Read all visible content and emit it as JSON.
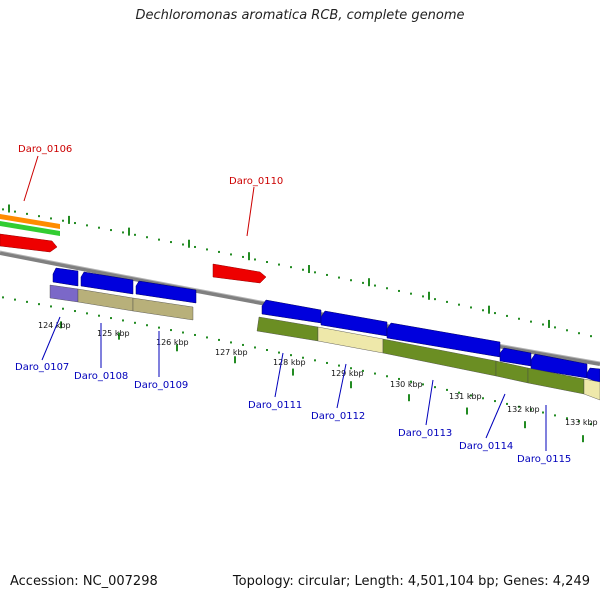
{
  "title": "Dechloromonas aromatica RCB, complete genome",
  "footer": {
    "accession": "Accession: NC_007298",
    "summary": "Topology: circular; Length: 4,501,104 bp; Genes: 4,249"
  },
  "colors": {
    "forward_cds": "#0000dd",
    "reverse_cds": "#ee0000",
    "gene_label_forward": "#0000bb",
    "gene_label_reverse": "#cc0000",
    "backbone": "#808080",
    "tick_marks": "#228b22",
    "cog_purple": "#7b68c8",
    "cog_khaki": "#b8b07a",
    "cog_olive": "#6b8e23",
    "cog_cream": "#eee8aa",
    "orange_track": "#ff8c00",
    "green_track": "#32cd32"
  },
  "ticks": [
    "124 kbp",
    "125 kbp",
    "126 kbp",
    "127 kbp",
    "128 kbp",
    "129 kbp",
    "130 kbp",
    "131 kbp",
    "132 kbp",
    "133 kbp"
  ],
  "genes": [
    {
      "name": "Daro_0106",
      "strand": "reverse"
    },
    {
      "name": "Daro_0107",
      "strand": "forward"
    },
    {
      "name": "Daro_0108",
      "strand": "forward"
    },
    {
      "name": "Daro_0109",
      "strand": "forward"
    },
    {
      "name": "Daro_0110",
      "strand": "reverse"
    },
    {
      "name": "Daro_0111",
      "strand": "forward"
    },
    {
      "name": "Daro_0112",
      "strand": "forward"
    },
    {
      "name": "Daro_0113",
      "strand": "forward"
    },
    {
      "name": "Daro_0114",
      "strand": "forward"
    },
    {
      "name": "Daro_0115",
      "strand": "forward"
    }
  ]
}
